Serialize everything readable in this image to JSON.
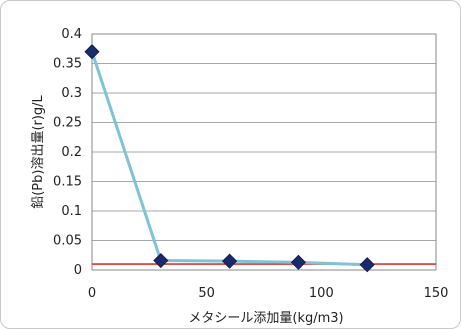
{
  "chart_data": {
    "type": "line",
    "title": "",
    "xlabel": "メタシール添加量(kg/m3)",
    "ylabel": "鉛(Pb)溶出量(r)g/L",
    "xlim": [
      0,
      150
    ],
    "ylim": [
      0,
      0.4
    ],
    "x_ticks": [
      "0",
      "50",
      "100",
      "150"
    ],
    "y_ticks": [
      "0",
      "0.05",
      "0.1",
      "0.15",
      "0.2",
      "0.25",
      "0.3",
      "0.35",
      "0.4"
    ],
    "grid": true,
    "series": [
      {
        "marker": "diamond",
        "color": "#7ec3d6",
        "marker_color": "#1a2a6b",
        "x": [
          0,
          30,
          60,
          90,
          120
        ],
        "y": [
          0.37,
          0.016,
          0.015,
          0.013,
          0.009
        ]
      }
    ],
    "reference_line": {
      "y": 0.01,
      "color": "#d6362e"
    }
  }
}
